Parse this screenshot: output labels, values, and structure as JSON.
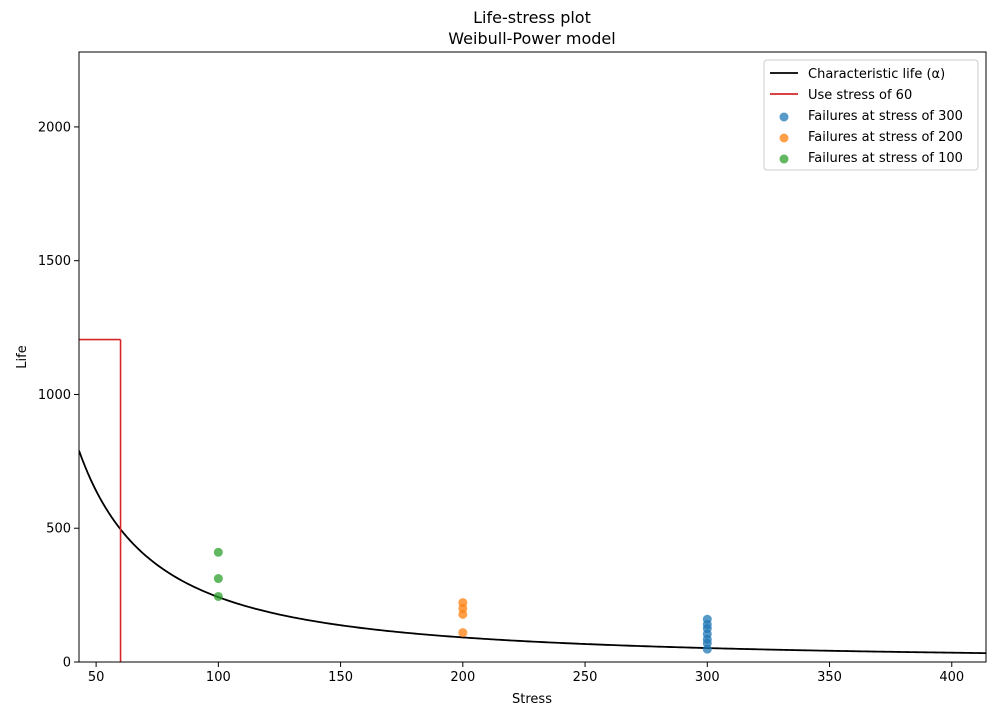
{
  "chart_data": {
    "type": "scatter",
    "title": "Life-stress plot",
    "subtitle": "Weibull-Power model",
    "xlabel": "Stress",
    "ylabel": "Life",
    "xlim": [
      43,
      414
    ],
    "ylim": [
      0,
      2280
    ],
    "xticks": [
      50,
      100,
      150,
      200,
      250,
      300,
      350,
      400
    ],
    "yticks": [
      0,
      500,
      1000,
      1500,
      2000
    ],
    "grid": false,
    "legend_position": "top-right",
    "curve": {
      "name": "Characteristic life (α)",
      "model": "power",
      "a": 153000,
      "n": -1.4,
      "color": "#000000"
    },
    "use_stress": {
      "name": "Use stress of 60",
      "stress": 60,
      "life": 1205,
      "color": "#d62728"
    },
    "series": [
      {
        "name": "Failures at stress of 300",
        "color": "#1f77b4",
        "x": [
          300,
          300,
          300,
          300,
          300,
          300,
          300
        ],
        "y": [
          160,
          140,
          125,
          105,
          85,
          70,
          48
        ]
      },
      {
        "name": "Failures at stress of 200",
        "color": "#ff7f0e",
        "x": [
          200,
          200,
          200,
          200
        ],
        "y": [
          222,
          200,
          178,
          110
        ]
      },
      {
        "name": "Failures at stress of 100",
        "color": "#2ca02c",
        "x": [
          100,
          100,
          100
        ],
        "y": [
          410,
          312,
          245
        ]
      }
    ]
  }
}
